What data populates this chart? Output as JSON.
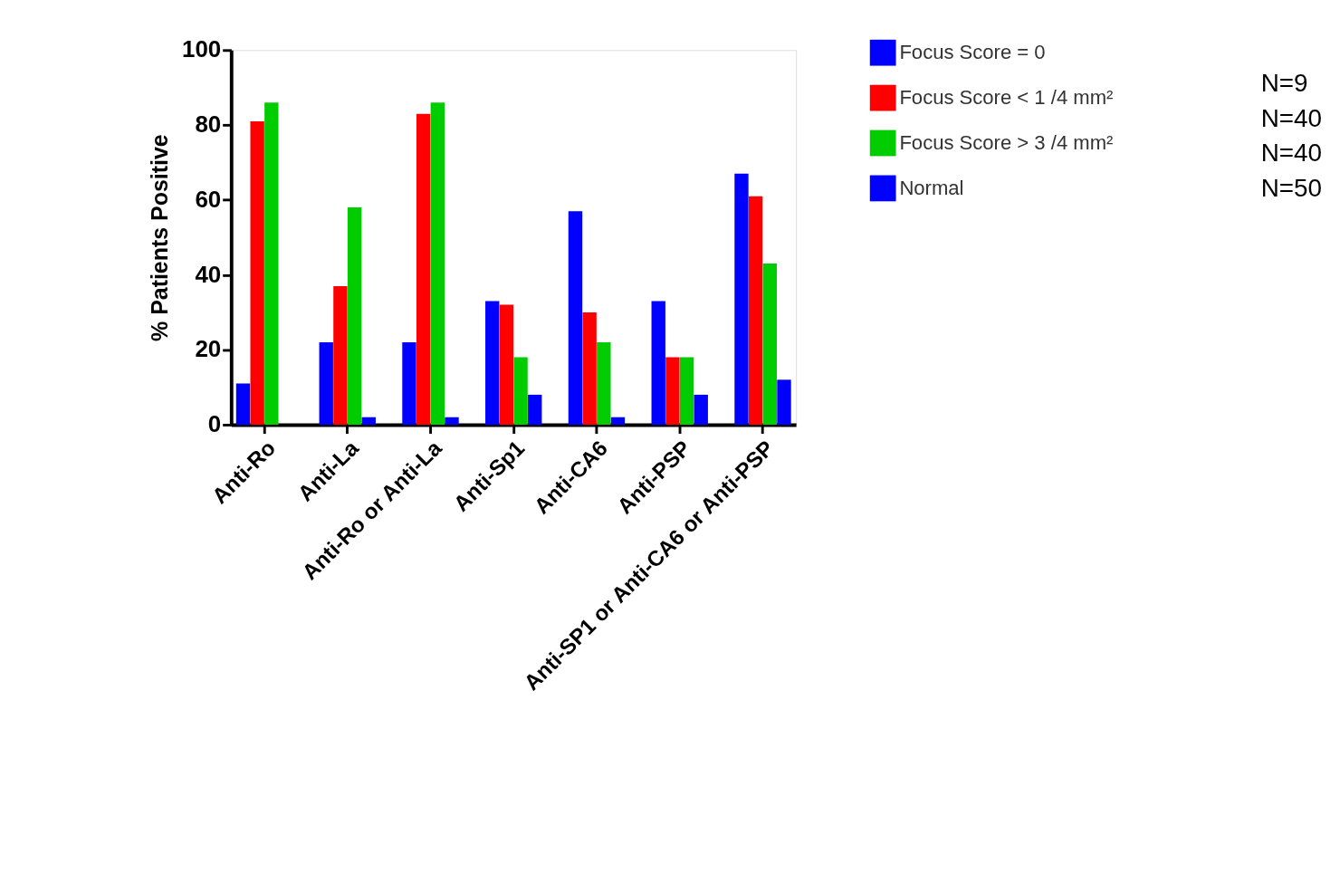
{
  "chart_data": {
    "type": "bar",
    "ylabel": "% Patients Positive",
    "categories": [
      "Anti-Ro",
      "Anti-La",
      "Anti-Ro or Anti-La",
      "Anti-Sp1",
      "Anti-CA6",
      "Anti-PSP",
      "Anti-SP1 or Anti-CA6 or Anti-PSP"
    ],
    "series": [
      {
        "name": "Focus Score = 0",
        "color": "#0000ff",
        "values": [
          11,
          22,
          22,
          33,
          57,
          33,
          67
        ]
      },
      {
        "name": "Focus Score < 1 /4 mm²",
        "color": "#ff0000",
        "values": [
          81,
          37,
          83,
          32,
          30,
          18,
          61
        ]
      },
      {
        "name": "Focus Score > 3 /4 mm²",
        "color": "#00cc00",
        "values": [
          86,
          58,
          86,
          18,
          22,
          18,
          43
        ]
      },
      {
        "name": "Normal",
        "color": "#0000ff",
        "values": [
          0,
          2,
          2,
          8,
          2,
          8,
          12
        ]
      }
    ],
    "ylim": [
      0,
      100
    ],
    "yticks": [
      0,
      20,
      40,
      60,
      80,
      100
    ],
    "legend": "top right",
    "annotations": [
      "N=9",
      "N=40",
      "N=40",
      "N=50"
    ]
  }
}
